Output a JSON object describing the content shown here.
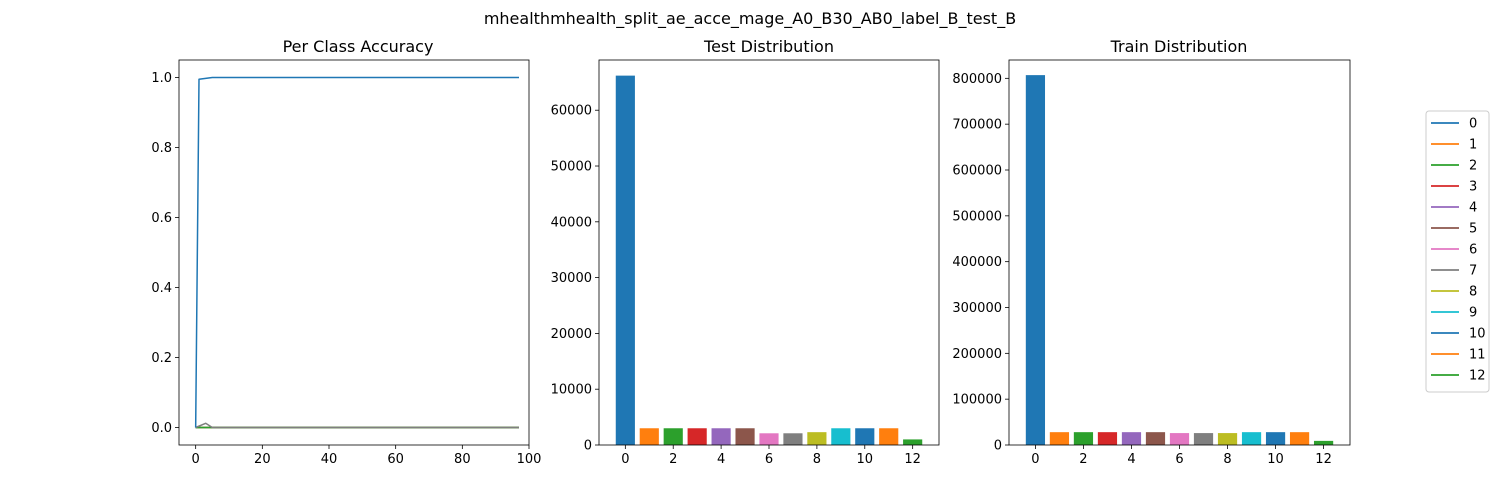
{
  "figure": {
    "suptitle": "mhealthmhealth_split_ae_acce_mage_A0_B30_AB0_label_B_test_B"
  },
  "colors": [
    "#1f77b4",
    "#ff7f0e",
    "#2ca02c",
    "#d62728",
    "#9467bd",
    "#8c564b",
    "#e377c2",
    "#7f7f7f",
    "#bcbd22",
    "#17becf",
    "#1f77b4",
    "#ff7f0e",
    "#2ca02c"
  ],
  "legend": {
    "placement": "right",
    "entries": [
      "0",
      "1",
      "2",
      "3",
      "4",
      "5",
      "6",
      "7",
      "8",
      "9",
      "10",
      "11",
      "12"
    ]
  },
  "chart_data": [
    {
      "type": "line",
      "title": "Per Class Accuracy",
      "xlabel": "",
      "ylabel": "",
      "xlim": [
        -5,
        100
      ],
      "ylim": [
        -0.05,
        1.05
      ],
      "xticks": [
        0,
        20,
        40,
        60,
        80,
        100
      ],
      "yticks": [
        0.0,
        0.2,
        0.4,
        0.6,
        0.8,
        1.0
      ],
      "grid": false,
      "series": [
        {
          "class": "0",
          "points": [
            [
              0,
              0.0
            ],
            [
              1,
              0.995
            ],
            [
              5,
              1.0
            ],
            [
              97,
              1.0
            ]
          ]
        },
        {
          "class": "1",
          "points": [
            [
              0,
              0.0
            ],
            [
              97,
              0.0
            ]
          ]
        },
        {
          "class": "2",
          "points": [
            [
              0,
              0.0
            ],
            [
              97,
              0.0
            ]
          ]
        },
        {
          "class": "3",
          "points": [
            [
              0,
              0.0
            ],
            [
              97,
              0.0
            ]
          ]
        },
        {
          "class": "4",
          "points": [
            [
              0,
              0.0
            ],
            [
              97,
              0.0
            ]
          ]
        },
        {
          "class": "5",
          "points": [
            [
              0,
              0.0
            ],
            [
              97,
              0.0
            ]
          ]
        },
        {
          "class": "6",
          "points": [
            [
              0,
              0.0
            ],
            [
              97,
              0.0
            ]
          ]
        },
        {
          "class": "7",
          "points": [
            [
              0,
              0.0
            ],
            [
              3,
              0.012
            ],
            [
              5,
              0.0
            ],
            [
              97,
              0.0
            ]
          ]
        },
        {
          "class": "8",
          "points": [
            [
              0,
              0.0
            ],
            [
              97,
              0.0
            ]
          ]
        },
        {
          "class": "9",
          "points": [
            [
              0,
              0.0
            ],
            [
              97,
              0.0
            ]
          ]
        },
        {
          "class": "10",
          "points": [
            [
              0,
              0.0
            ],
            [
              97,
              0.0
            ]
          ]
        },
        {
          "class": "11",
          "points": [
            [
              0,
              0.0
            ],
            [
              97,
              0.0
            ]
          ]
        },
        {
          "class": "12",
          "points": [
            [
              0,
              0.0
            ],
            [
              97,
              0.0
            ]
          ]
        }
      ]
    },
    {
      "type": "bar",
      "title": "Test Distribution",
      "xlabel": "",
      "ylabel": "",
      "categories": [
        0,
        1,
        2,
        3,
        4,
        5,
        6,
        7,
        8,
        9,
        10,
        11,
        12
      ],
      "values": [
        66200,
        3000,
        3000,
        3000,
        3000,
        3000,
        2100,
        2100,
        2300,
        3000,
        3000,
        3000,
        1000
      ],
      "xlim": [
        -1.1,
        13.1
      ],
      "ylim": [
        0,
        69000
      ],
      "xticks": [
        0,
        2,
        4,
        6,
        8,
        10,
        12
      ],
      "yticks": [
        0,
        10000,
        20000,
        30000,
        40000,
        50000,
        60000
      ],
      "grid": false
    },
    {
      "type": "bar",
      "title": "Train Distribution",
      "xlabel": "",
      "ylabel": "",
      "categories": [
        0,
        1,
        2,
        3,
        4,
        5,
        6,
        7,
        8,
        9,
        10,
        11,
        12
      ],
      "values": [
        807000,
        28000,
        28000,
        28000,
        28000,
        28000,
        26000,
        26000,
        26000,
        28000,
        28000,
        28000,
        9000
      ],
      "xlim": [
        -1.1,
        13.1
      ],
      "ylim": [
        0,
        840000
      ],
      "xticks": [
        0,
        2,
        4,
        6,
        8,
        10,
        12
      ],
      "yticks": [
        0,
        100000,
        200000,
        300000,
        400000,
        500000,
        600000,
        700000,
        800000
      ],
      "grid": false
    }
  ]
}
